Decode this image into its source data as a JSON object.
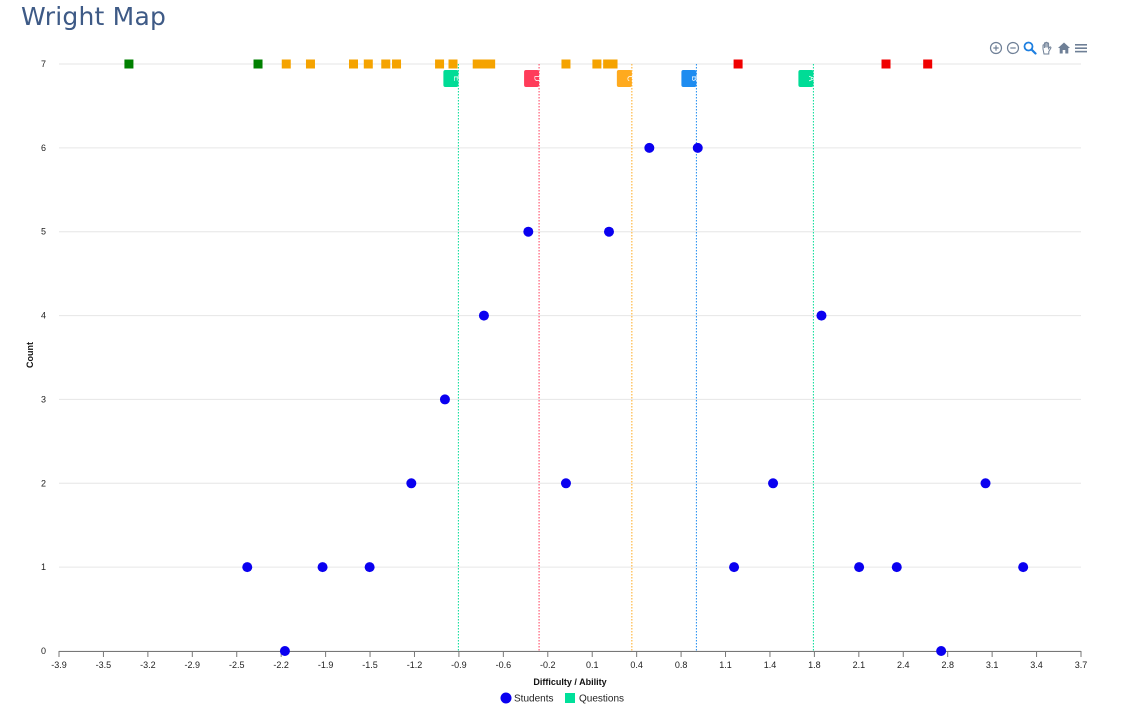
{
  "header": {
    "title": "Wright Map"
  },
  "toolbar": {
    "buttons": [
      {
        "name": "zoom-in",
        "icon": "zoom-in-icon"
      },
      {
        "name": "zoom-out",
        "icon": "zoom-out-icon"
      },
      {
        "name": "zoom-select",
        "icon": "magnifier-icon"
      },
      {
        "name": "pan",
        "icon": "hand-icon"
      },
      {
        "name": "reset",
        "icon": "home-icon"
      },
      {
        "name": "menu",
        "icon": "hamburger-icon"
      }
    ]
  },
  "chart_data": {
    "type": "scatter",
    "title": "Wright Map",
    "xlabel": "Difficulty / Ability",
    "ylabel": "Count",
    "xlim": [
      -3.9,
      3.7
    ],
    "ylim": [
      0,
      7
    ],
    "x_ticks": [
      "-3.9",
      "-3.5",
      "-3.2",
      "-2.9",
      "-2.5",
      "-2.2",
      "-1.9",
      "-1.5",
      "-1.2",
      "-0.9",
      "-0.6",
      "-0.2",
      "0.1",
      "0.4",
      "0.8",
      "1.1",
      "1.4",
      "1.8",
      "2.1",
      "2.4",
      "2.8",
      "3.1",
      "3.4",
      "3.7"
    ],
    "y_ticks": [
      "0",
      "1",
      "2",
      "3",
      "4",
      "5",
      "6",
      "7"
    ],
    "grid": "horizontal",
    "legend_position": "bottom-center",
    "series": [
      {
        "name": "Students",
        "marker": "circle",
        "color": "#0a00f0",
        "points": [
          {
            "x": -2.5,
            "y": 1
          },
          {
            "x": -2.22,
            "y": 0
          },
          {
            "x": -1.94,
            "y": 1
          },
          {
            "x": -1.59,
            "y": 1
          },
          {
            "x": -1.28,
            "y": 2
          },
          {
            "x": -1.03,
            "y": 3
          },
          {
            "x": -0.74,
            "y": 4
          },
          {
            "x": -0.41,
            "y": 5
          },
          {
            "x": -0.13,
            "y": 2
          },
          {
            "x": 0.19,
            "y": 5
          },
          {
            "x": 0.49,
            "y": 6
          },
          {
            "x": 0.85,
            "y": 6
          },
          {
            "x": 1.12,
            "y": 1
          },
          {
            "x": 1.41,
            "y": 2
          },
          {
            "x": 1.77,
            "y": 4
          },
          {
            "x": 2.05,
            "y": 1
          },
          {
            "x": 2.33,
            "y": 1
          },
          {
            "x": 2.66,
            "y": 0
          },
          {
            "x": 2.99,
            "y": 2
          },
          {
            "x": 3.27,
            "y": 1
          }
        ]
      },
      {
        "name": "Questions",
        "marker": "square",
        "color": "#00e09a",
        "points": [
          {
            "x": -3.38,
            "y": 7,
            "color": "#008000"
          },
          {
            "x": -2.42,
            "y": 7,
            "color": "#008000"
          },
          {
            "x": -2.21,
            "y": 7,
            "color": "#f5a300"
          },
          {
            "x": -2.03,
            "y": 7,
            "color": "#f5a300"
          },
          {
            "x": -1.71,
            "y": 7,
            "color": "#f5a300"
          },
          {
            "x": -1.6,
            "y": 7,
            "color": "#f5a300"
          },
          {
            "x": -1.47,
            "y": 7,
            "color": "#f5a300"
          },
          {
            "x": -1.39,
            "y": 7,
            "color": "#f5a300"
          },
          {
            "x": -1.07,
            "y": 7,
            "color": "#f5a300"
          },
          {
            "x": -0.97,
            "y": 7,
            "color": "#f5a300"
          },
          {
            "x": -0.79,
            "y": 7,
            "color": "#f5a300"
          },
          {
            "x": -0.73,
            "y": 7,
            "color": "#f5a300"
          },
          {
            "x": -0.69,
            "y": 7,
            "color": "#f5a300"
          },
          {
            "x": -0.13,
            "y": 7,
            "color": "#f5a300"
          },
          {
            "x": 0.1,
            "y": 7,
            "color": "#f5a300"
          },
          {
            "x": 0.18,
            "y": 7,
            "color": "#f5a300"
          },
          {
            "x": 0.22,
            "y": 7,
            "color": "#f5a300"
          },
          {
            "x": 1.15,
            "y": 7,
            "color": "#f00000"
          },
          {
            "x": 2.25,
            "y": 7,
            "color": "#f00000"
          },
          {
            "x": 2.56,
            "y": 7,
            "color": "#f00000"
          }
        ]
      }
    ],
    "vertical_lines": [
      {
        "label": "E",
        "x": -0.93,
        "color": "#00dc96"
      },
      {
        "label": "D",
        "x": -0.33,
        "color": "#ff3c5a"
      },
      {
        "label": "C",
        "x": 0.36,
        "color": "#ffaa1e"
      },
      {
        "label": "B",
        "x": 0.84,
        "color": "#1e8cf0"
      },
      {
        "label": "A",
        "x": 1.71,
        "color": "#00dc96"
      }
    ]
  }
}
